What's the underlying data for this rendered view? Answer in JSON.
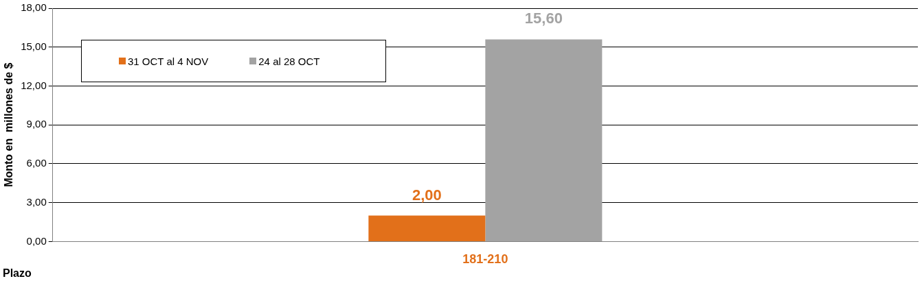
{
  "chart_data": {
    "type": "bar",
    "xlabel": "Plazo",
    "ylabel": "Monto en  millones de $",
    "categories": [
      "181-210"
    ],
    "series": [
      {
        "name": "31 OCT al 4 NOV",
        "color": "#e2701a",
        "values": [
          2.0
        ],
        "value_labels": [
          "2,00"
        ]
      },
      {
        "name": "24 al 28 OCT",
        "color": "#a3a3a3",
        "values": [
          15.6
        ],
        "value_labels": [
          "15,60"
        ]
      }
    ],
    "ylim": [
      0,
      18
    ],
    "yticks": [
      {
        "value": 0,
        "label": "0,00"
      },
      {
        "value": 3,
        "label": "3,00"
      },
      {
        "value": 6,
        "label": "6,00"
      },
      {
        "value": 9,
        "label": "9,00"
      },
      {
        "value": 12,
        "label": "12,00"
      },
      {
        "value": 15,
        "label": "15,00"
      },
      {
        "value": 18,
        "label": "18,00"
      }
    ],
    "grid": "y",
    "legend": "top left"
  }
}
